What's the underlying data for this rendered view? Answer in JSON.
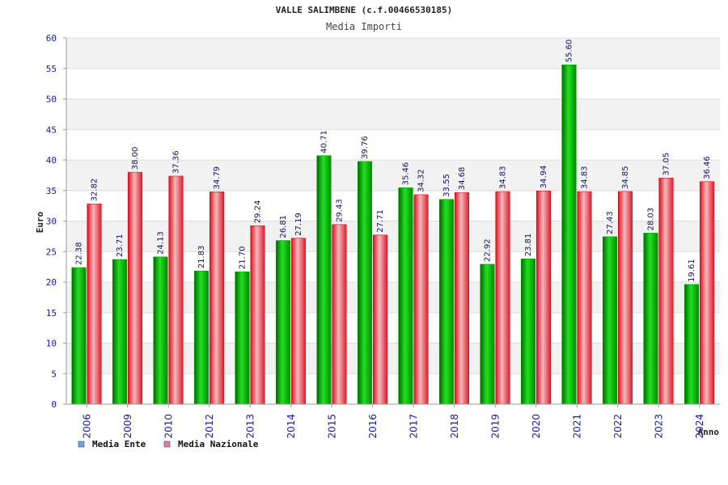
{
  "chart_data": {
    "type": "bar",
    "title": "VALLE SALIMBENE (c.f.00466530185)",
    "subtitle": "Media Importi",
    "xlabel": "Anno",
    "ylabel": "Euro",
    "ylim": [
      0,
      60
    ],
    "yticks": [
      0,
      5,
      10,
      15,
      20,
      25,
      30,
      35,
      40,
      45,
      50,
      55,
      60
    ],
    "categories": [
      "2006",
      "2009",
      "2010",
      "2012",
      "2013",
      "2014",
      "2015",
      "2016",
      "2017",
      "2018",
      "2019",
      "2020",
      "2021",
      "2022",
      "2023",
      "2024"
    ],
    "series": [
      {
        "name": "Media Ente",
        "color": "#00b000",
        "legend_color": "#6aa5e6",
        "values": [
          22.38,
          23.71,
          24.13,
          21.83,
          21.7,
          26.81,
          40.71,
          39.76,
          35.46,
          33.55,
          22.92,
          23.81,
          55.6,
          27.43,
          28.03,
          19.61
        ],
        "labels": [
          "22.38",
          "23.71",
          "24.13",
          "21.83",
          "21.70",
          "26.81",
          "40.71",
          "39.76",
          "35.46",
          "33.55",
          "22.92",
          "23.81",
          "55.60",
          "27.43",
          "28.03",
          "19.61"
        ]
      },
      {
        "name": "Media Nazionale",
        "color": "#e8202e",
        "legend_color": "#e07aa8",
        "values": [
          32.82,
          38.0,
          37.36,
          34.79,
          29.24,
          27.19,
          29.43,
          27.71,
          34.32,
          34.68,
          34.83,
          34.94,
          34.83,
          34.85,
          37.05,
          36.46
        ],
        "labels": [
          "32.82",
          "38.00",
          "37.36",
          "34.79",
          "29.24",
          "27.19",
          "29.43",
          "27.71",
          "34.32",
          "34.68",
          "34.83",
          "34.94",
          "34.83",
          "34.85",
          "37.05",
          "36.46"
        ]
      }
    ],
    "grid": true,
    "legend_position": "bottom-left"
  }
}
